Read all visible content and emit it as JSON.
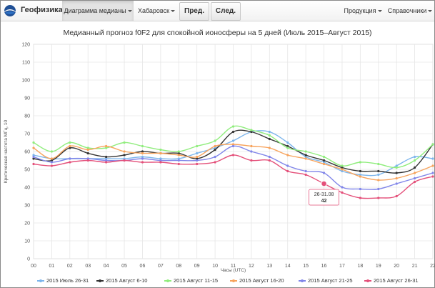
{
  "navbar": {
    "brand": "Геофизика",
    "menu_median": "Диаграмма медианы",
    "menu_station": "Хабаровск",
    "btn_prev": "Пред.",
    "btn_next": "След.",
    "menu_products": "Продукция",
    "menu_reference": "Справочники"
  },
  "colors": {
    "s1": "#7cb5ec",
    "s2": "#333333",
    "s3": "#90ed7d",
    "s4": "#f7a35c",
    "s5": "#8085e9",
    "s6": "#e4507a"
  },
  "tooltip": {
    "title": "26-31.08",
    "value": "42"
  },
  "chart_data": {
    "type": "line",
    "title": "Медианный прогноз f0F2 для спокойной ионосферы на 5 дней (Июль 2015–Август 2015)",
    "xlabel": "Часы (UTC)",
    "ylabel": "Критическая частота МГц, 10",
    "x": [
      "00",
      "01",
      "02",
      "03",
      "04",
      "05",
      "06",
      "07",
      "08",
      "09",
      "10",
      "11",
      "12",
      "13",
      "14",
      "15",
      "16",
      "17",
      "18",
      "19",
      "20",
      "21",
      "22"
    ],
    "ylim": [
      0,
      120
    ],
    "yticks": [
      0,
      10,
      20,
      30,
      40,
      50,
      60,
      70,
      80,
      90,
      100,
      110,
      120
    ],
    "grid": true,
    "legend": "bottom",
    "series": [
      {
        "name": "2015 Июль 26-31",
        "values": [
          58,
          56,
          56,
          56,
          56,
          56,
          57,
          56,
          56,
          59,
          62,
          66,
          71,
          71,
          65,
          57,
          54,
          49,
          47,
          47,
          52,
          57,
          56
        ]
      },
      {
        "name": "2015 Август 6-10",
        "values": [
          56,
          55,
          62,
          59,
          57,
          58,
          60,
          59,
          59,
          56,
          61,
          71,
          71,
          67,
          63,
          58,
          55,
          51,
          49,
          49,
          48,
          51,
          64
        ]
      },
      {
        "name": "2015 Август 11-15",
        "values": [
          65,
          60,
          65,
          62,
          62,
          65,
          63,
          61,
          60,
          63,
          66,
          74,
          72,
          69,
          62,
          60,
          57,
          52,
          54,
          53,
          51,
          55,
          64
        ]
      },
      {
        "name": "2015 Август 16-20",
        "values": [
          62,
          56,
          63,
          61,
          63,
          60,
          59,
          59,
          58,
          57,
          63,
          64,
          63,
          62,
          58,
          56,
          53,
          50,
          46,
          44,
          45,
          48,
          52
        ]
      },
      {
        "name": "2015 Август 21-25",
        "values": [
          57,
          54,
          56,
          56,
          55,
          55,
          56,
          55,
          55,
          55,
          57,
          63,
          60,
          57,
          52,
          49,
          48,
          40,
          39,
          39,
          42,
          45,
          48
        ]
      },
      {
        "name": "2015 Август 26-31",
        "values": [
          53,
          52,
          54,
          55,
          54,
          55,
          54,
          54,
          53,
          53,
          54,
          58,
          55,
          55,
          49,
          47,
          42,
          37,
          34,
          34,
          35,
          43,
          46
        ]
      }
    ]
  }
}
